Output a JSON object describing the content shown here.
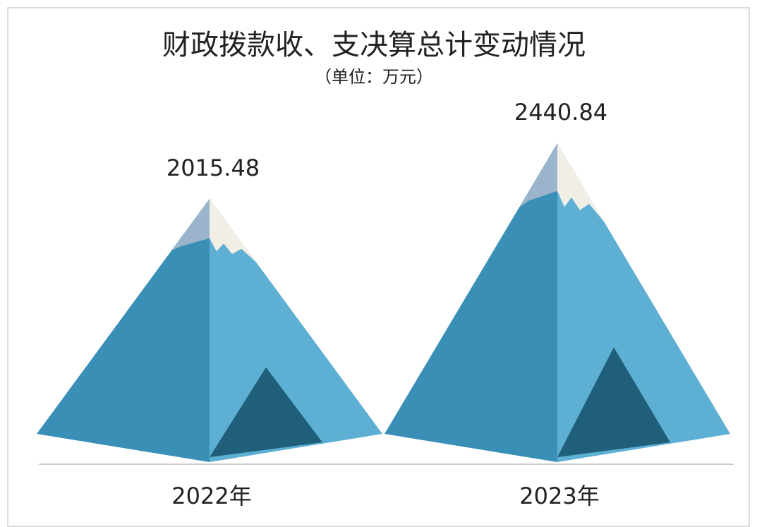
{
  "chart_data": {
    "type": "pictorial-bar",
    "title": "财政拨款收、支决算总计变动情况",
    "subtitle": "（单位：万元）",
    "categories": [
      "2022年",
      "2023年"
    ],
    "values": [
      2015.48,
      2440.84
    ]
  }
}
